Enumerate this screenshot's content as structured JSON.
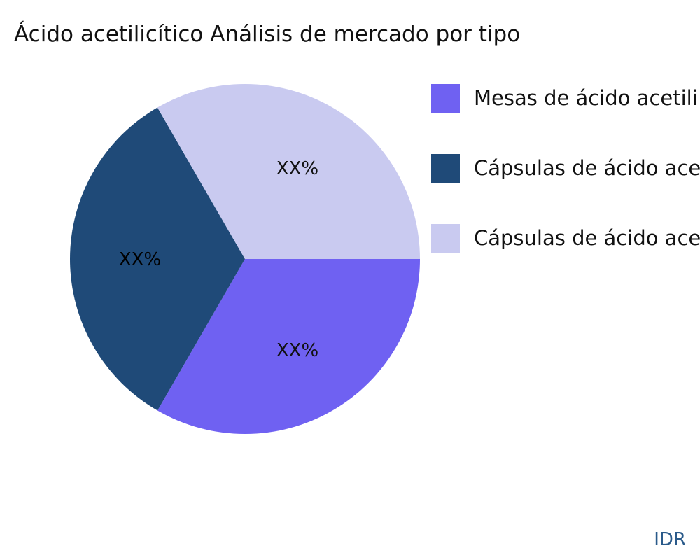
{
  "chart_data": {
    "type": "pie",
    "title": "Ácido acetilicítico Análisis de mercado por tipo",
    "categories": [
      "Mesas de ácido acetili",
      "Cápsulas de ácido ace",
      "Cápsulas de ácido ace"
    ],
    "values": [
      33.33,
      33.33,
      33.34
    ],
    "data_labels": [
      "XX%",
      "XX%",
      "XX%"
    ],
    "colors": [
      "#6f61f2",
      "#1f4a78",
      "#c9caf0"
    ],
    "legend_position": "right"
  },
  "watermark": "IDR"
}
